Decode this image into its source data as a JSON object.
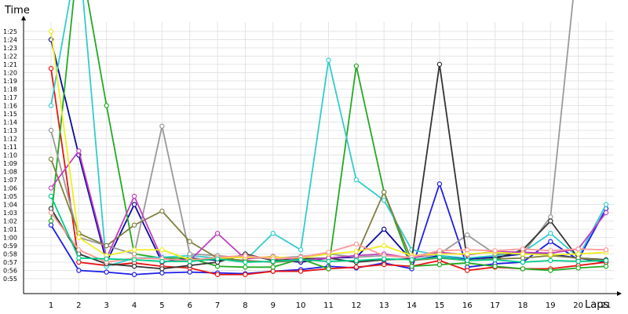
{
  "chart_data": {
    "type": "line",
    "title": "",
    "xlabel": "Laps",
    "ylabel": "Time",
    "x": [
      1,
      2,
      3,
      4,
      5,
      6,
      7,
      8,
      9,
      10,
      11,
      12,
      13,
      14,
      15,
      16,
      17,
      18,
      19,
      20,
      21
    ],
    "xlim": [
      0,
      21.7
    ],
    "ylim_seconds": [
      53,
      92
    ],
    "y_tick_labels": [
      "0:55",
      "0:56",
      "0:57",
      "0:58",
      "0:59",
      "1:00",
      "1:01",
      "1:02",
      "1:03",
      "1:04",
      "1:05",
      "1:06",
      "1:07",
      "1:08",
      "1:09",
      "1:10",
      "1:11",
      "1:12",
      "1:13",
      "1:14",
      "1:15",
      "1:16",
      "1:17",
      "1:18",
      "1:19",
      "1:20",
      "1:21",
      "1:22",
      "1:23",
      "1:24",
      "1:25"
    ],
    "grid": true,
    "series": [
      {
        "color": "#1e1ee6",
        "values": [
          61.5,
          56.0,
          55.8,
          55.5,
          55.7,
          55.8,
          55.7,
          55.6,
          55.9,
          56.1,
          56.5,
          56.3,
          56.9,
          56.2,
          66.5,
          56.4,
          56.8,
          57.0,
          59.5,
          57.3,
          63.5
        ]
      },
      {
        "color": "#0a0aa0",
        "values": [
          84.0,
          70.0,
          57.0,
          64.0,
          57.0,
          57.5,
          57.2,
          57.8,
          57.3,
          57.0,
          57.5,
          57.6,
          61.0,
          57.2,
          57.8,
          57.4,
          57.6,
          58.0,
          58.0,
          57.5,
          57.0
        ]
      },
      {
        "color": "#e61414",
        "values": [
          80.5,
          57.0,
          56.6,
          56.9,
          56.5,
          56.3,
          55.5,
          55.5,
          55.9,
          55.9,
          56.2,
          56.4,
          56.7,
          56.5,
          57.2,
          56.0,
          56.4,
          56.2,
          56.2,
          56.6,
          57.0
        ]
      },
      {
        "color": "#22aa22",
        "values": [
          62.0,
          95.0,
          76.0,
          58.0,
          57.5,
          57.5,
          56.5,
          56.4,
          56.4,
          57.4,
          56.2,
          80.8,
          65.5,
          56.5,
          56.7,
          56.9,
          56.5,
          56.2,
          56.0,
          56.3,
          56.5
        ]
      },
      {
        "color": "#33cccc",
        "values": [
          76.0,
          95.0,
          56.5,
          57.5,
          57.6,
          57.8,
          57.5,
          57.2,
          60.5,
          58.5,
          81.5,
          67.0,
          64.5,
          58.5,
          57.8,
          57.5,
          57.8,
          58.2,
          60.5,
          57.6,
          64.0
        ]
      },
      {
        "color": "#9a9a9a",
        "values": [
          73.0,
          60.0,
          59.0,
          58.0,
          73.5,
          58.0,
          57.8,
          57.5,
          57.5,
          57.7,
          58.0,
          57.6,
          57.8,
          57.5,
          58.0,
          60.3,
          58.0,
          58.0,
          62.5,
          95.0,
          95.0
        ]
      },
      {
        "color": "#333333",
        "values": [
          63.5,
          58.0,
          56.8,
          56.5,
          56.2,
          56.6,
          57.0,
          58.0,
          57.2,
          57.4,
          57.5,
          57.0,
          57.3,
          57.4,
          81.0,
          57.2,
          57.4,
          58.5,
          62.0,
          57.5,
          57.3
        ]
      },
      {
        "color": "#808040",
        "values": [
          69.5,
          60.5,
          59.0,
          61.5,
          63.2,
          59.5,
          57.5,
          57.2,
          57.0,
          57.2,
          57.5,
          57.8,
          65.5,
          57.2,
          57.5,
          57.2,
          57.4,
          57.5,
          57.8,
          57.5,
          57.2
        ]
      },
      {
        "color": "#c040c0",
        "values": [
          66.0,
          70.5,
          57.5,
          65.0,
          57.4,
          57.2,
          60.5,
          57.4,
          57.7,
          57.2,
          57.5,
          57.8,
          58.0,
          57.5,
          58.2,
          57.9,
          58.3,
          58.2,
          58.1,
          58.6,
          63.0
        ]
      },
      {
        "color": "#eeee22",
        "values": [
          85.0,
          60.0,
          57.8,
          58.5,
          58.5,
          57.3,
          57.5,
          57.6,
          57.6,
          57.5,
          58.0,
          58.3,
          59.0,
          57.8,
          58.0,
          58.0,
          58.2,
          58.0,
          57.9,
          58.0,
          58.2
        ]
      },
      {
        "color": "#ff9999",
        "values": [
          63.0,
          58.5,
          57.0,
          57.5,
          57.4,
          57.2,
          57.6,
          57.8,
          57.4,
          57.6,
          58.2,
          59.2,
          57.8,
          57.6,
          58.4,
          58.5,
          58.4,
          58.6,
          58.4,
          58.6,
          58.5
        ]
      },
      {
        "color": "#00cc88",
        "values": [
          65.0,
          57.5,
          57.4,
          57.3,
          57.1,
          57.1,
          57.4,
          57.0,
          57.1,
          57.3,
          57.1,
          57.2,
          57.4,
          57.3,
          57.6,
          57.2,
          57.3,
          57.0,
          57.2,
          57.1,
          57.2
        ]
      }
    ]
  }
}
